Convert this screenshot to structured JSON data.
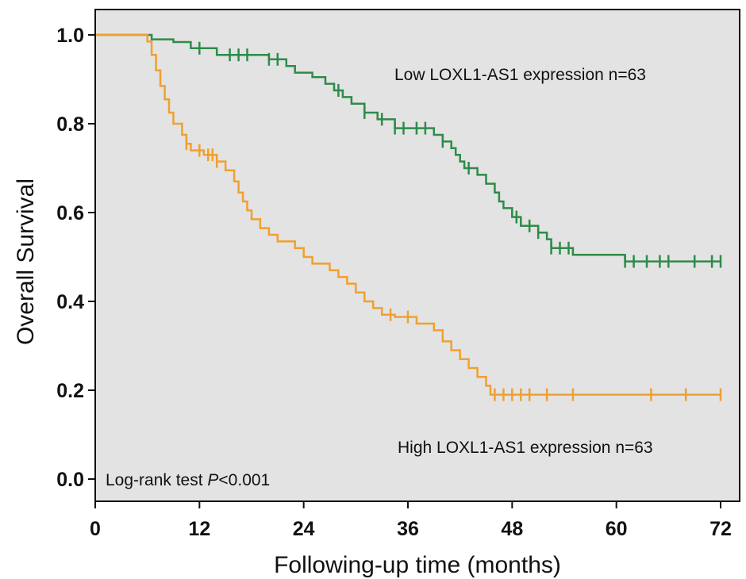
{
  "chart_data": {
    "type": "line",
    "ylabel": "Overall Survival",
    "xlabel": "Following-up time (months)",
    "xlim": [
      0,
      72
    ],
    "ylim": [
      0,
      1.0
    ],
    "xticks": [
      "0",
      "12",
      "24",
      "36",
      "48",
      "60",
      "72"
    ],
    "yticks": [
      "0.0",
      "0.2",
      "0.4",
      "0.6",
      "0.8",
      "1.0"
    ],
    "background_color": "#e3e3e3",
    "grid": false,
    "annotations": {
      "low_label": "Low LOXL1-AS1 expression n=63",
      "high_label": "High LOXL1-AS1 expression n=63",
      "test_prefix": "Log-rank test ",
      "test_p": "P",
      "test_suffix": "<0.001"
    },
    "series": [
      {
        "label": "Low LOXL1-AS1 expression n=63",
        "color": "#2e8b4a",
        "steps": [
          [
            0,
            1.0
          ],
          [
            6.5,
            0.99
          ],
          [
            9,
            0.984
          ],
          [
            11,
            0.97
          ],
          [
            14,
            0.955
          ],
          [
            20,
            0.945
          ],
          [
            22,
            0.93
          ],
          [
            23,
            0.915
          ],
          [
            25,
            0.905
          ],
          [
            26.5,
            0.89
          ],
          [
            27.5,
            0.875
          ],
          [
            28.5,
            0.86
          ],
          [
            29.5,
            0.845
          ],
          [
            31,
            0.825
          ],
          [
            32.5,
            0.81
          ],
          [
            34.5,
            0.79
          ],
          [
            39,
            0.775
          ],
          [
            40,
            0.76
          ],
          [
            41,
            0.745
          ],
          [
            41.5,
            0.73
          ],
          [
            42,
            0.715
          ],
          [
            42.5,
            0.7
          ],
          [
            44,
            0.685
          ],
          [
            45,
            0.665
          ],
          [
            46,
            0.645
          ],
          [
            46.5,
            0.625
          ],
          [
            47,
            0.61
          ],
          [
            48,
            0.59
          ],
          [
            49,
            0.57
          ],
          [
            51,
            0.555
          ],
          [
            52,
            0.54
          ],
          [
            52.5,
            0.52
          ],
          [
            55,
            0.505
          ],
          [
            61,
            0.49
          ],
          [
            72,
            0.49
          ]
        ],
        "censored_x": [
          12,
          15.5,
          16.5,
          17.5,
          20,
          21,
          28,
          31,
          33,
          34.5,
          35.5,
          37,
          38,
          40,
          43,
          48.5,
          50,
          51,
          52.5,
          53.5,
          54.5,
          61,
          62,
          63.5,
          65,
          66,
          69,
          71,
          72
        ]
      },
      {
        "label": "High LOXL1-AS1 expression n=63",
        "color": "#f0a030",
        "steps": [
          [
            0,
            1.0
          ],
          [
            6,
            0.985
          ],
          [
            6.5,
            0.955
          ],
          [
            7,
            0.92
          ],
          [
            7.5,
            0.885
          ],
          [
            8,
            0.855
          ],
          [
            8.5,
            0.825
          ],
          [
            9,
            0.8
          ],
          [
            10,
            0.775
          ],
          [
            10.5,
            0.755
          ],
          [
            11,
            0.74
          ],
          [
            12.5,
            0.73
          ],
          [
            14,
            0.715
          ],
          [
            15,
            0.695
          ],
          [
            16,
            0.67
          ],
          [
            16.5,
            0.645
          ],
          [
            17,
            0.625
          ],
          [
            17.5,
            0.605
          ],
          [
            18,
            0.585
          ],
          [
            19,
            0.565
          ],
          [
            20,
            0.55
          ],
          [
            21,
            0.535
          ],
          [
            23,
            0.52
          ],
          [
            24,
            0.5
          ],
          [
            25,
            0.485
          ],
          [
            27,
            0.47
          ],
          [
            28,
            0.455
          ],
          [
            29,
            0.44
          ],
          [
            30,
            0.42
          ],
          [
            31,
            0.4
          ],
          [
            32,
            0.385
          ],
          [
            33,
            0.37
          ],
          [
            34.5,
            0.365
          ],
          [
            37,
            0.35
          ],
          [
            39,
            0.335
          ],
          [
            40,
            0.31
          ],
          [
            41,
            0.29
          ],
          [
            42,
            0.27
          ],
          [
            43,
            0.25
          ],
          [
            44,
            0.23
          ],
          [
            45,
            0.21
          ],
          [
            45.5,
            0.19
          ],
          [
            72,
            0.19
          ]
        ],
        "censored_x": [
          10.5,
          12,
          13,
          13.5,
          14,
          34,
          36,
          46,
          47,
          48,
          49,
          50,
          52,
          55,
          64,
          68,
          72
        ]
      }
    ]
  }
}
